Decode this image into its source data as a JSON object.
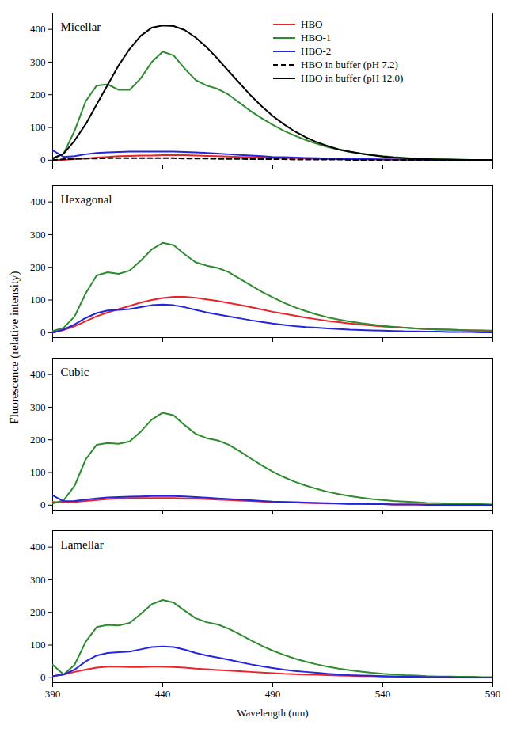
{
  "chart_data": {
    "type": "line",
    "x_label": "Wavelength (nm)",
    "y_label": "Fluorescence (relative intensity)",
    "x": [
      390,
      395,
      400,
      405,
      410,
      415,
      420,
      425,
      430,
      435,
      440,
      445,
      450,
      455,
      460,
      465,
      470,
      475,
      480,
      485,
      490,
      495,
      500,
      505,
      510,
      515,
      520,
      525,
      530,
      535,
      540,
      545,
      550,
      555,
      560,
      565,
      570,
      575,
      580,
      585,
      590
    ],
    "xlim": [
      390,
      590
    ],
    "xticks": [
      390,
      440,
      490,
      540,
      590
    ],
    "ylim": [
      -15,
      450
    ],
    "yticks": [
      0,
      100,
      200,
      300,
      400
    ],
    "legend": "top-right",
    "panels": [
      {
        "title": "Micellar",
        "tick_labels": "y",
        "series": [
          {
            "name": "HBO",
            "color": "#e8242a",
            "values": [
              0,
              1,
              3,
              5,
              8,
              10,
              12,
              13,
              14,
              14,
              15,
              15,
              15,
              14,
              13,
              12,
              11,
              10,
              9,
              8,
              7,
              6,
              6,
              5,
              4,
              4,
              3,
              3,
              2,
              2,
              2,
              2,
              1,
              1,
              1,
              1,
              1,
              1,
              1,
              0,
              0
            ]
          },
          {
            "name": "HBO-1",
            "color": "#2e8b2e",
            "values": [
              5,
              20,
              90,
              180,
              228,
              232,
              215,
              215,
              250,
              300,
              332,
              320,
              280,
              245,
              228,
              218,
              200,
              175,
              150,
              128,
              108,
              90,
              75,
              62,
              50,
              40,
              32,
              25,
              20,
              16,
              12,
              9,
              7,
              5,
              4,
              3,
              2,
              2,
              1,
              1,
              1
            ]
          },
          {
            "name": "HBO-2",
            "color": "#2424e0",
            "values": [
              30,
              10,
              12,
              18,
              22,
              24,
              25,
              26,
              26,
              26,
              26,
              26,
              25,
              24,
              22,
              20,
              18,
              16,
              14,
              12,
              10,
              9,
              8,
              7,
              6,
              5,
              4,
              4,
              3,
              3,
              2,
              2,
              2,
              1,
              1,
              1,
              1,
              0,
              0,
              0,
              0
            ]
          },
          {
            "name": "HBO in buffer (pH 7.2)",
            "color": "#000000",
            "line_style": "dashed",
            "values": [
              0,
              3,
              4,
              5,
              5,
              6,
              6,
              6,
              6,
              6,
              6,
              6,
              5,
              5,
              5,
              4,
              4,
              4,
              3,
              3,
              3,
              3,
              2,
              2,
              2,
              2,
              2,
              1,
              1,
              1,
              1,
              1,
              1,
              1,
              1,
              1,
              0,
              0,
              0,
              0,
              0
            ]
          },
          {
            "name": "HBO in buffer (pH 12.0)",
            "color": "#000000",
            "line_style": "solid",
            "values": [
              5,
              20,
              60,
              110,
              170,
              230,
              290,
              340,
              380,
              405,
              412,
              410,
              398,
              375,
              345,
              310,
              272,
              235,
              198,
              165,
              135,
              110,
              88,
              70,
              55,
              43,
              33,
              26,
              20,
              15,
              11,
              8,
              6,
              4,
              3,
              2,
              2,
              1,
              1,
              1,
              0
            ]
          }
        ]
      },
      {
        "title": "Hexagonal",
        "tick_labels": "y",
        "series": [
          {
            "name": "HBO",
            "color": "#e8242a",
            "values": [
              0,
              8,
              20,
              35,
              50,
              62,
              72,
              82,
              92,
              100,
              106,
              110,
              110,
              107,
              102,
              97,
              91,
              85,
              78,
              71,
              64,
              58,
              52,
              46,
              41,
              36,
              32,
              28,
              25,
              22,
              19,
              17,
              15,
              13,
              11,
              10,
              9,
              8,
              7,
              6,
              5
            ]
          },
          {
            "name": "HBO-1",
            "color": "#2e8b2e",
            "values": [
              5,
              15,
              50,
              120,
              175,
              185,
              180,
              190,
              220,
              255,
              275,
              268,
              240,
              215,
              205,
              198,
              185,
              165,
              145,
              125,
              108,
              92,
              78,
              66,
              56,
              47,
              40,
              34,
              29,
              25,
              21,
              18,
              15,
              13,
              11,
              10,
              9,
              8,
              7,
              7,
              6
            ]
          },
          {
            "name": "HBO-2",
            "color": "#2424e0",
            "values": [
              0,
              10,
              25,
              45,
              60,
              68,
              70,
              72,
              78,
              84,
              86,
              84,
              78,
              70,
              62,
              56,
              50,
              44,
              38,
              33,
              28,
              24,
              20,
              17,
              15,
              13,
              11,
              9,
              8,
              7,
              6,
              5,
              4,
              4,
              3,
              3,
              2,
              2,
              2,
              1,
              1
            ]
          }
        ]
      },
      {
        "title": "Cubic",
        "tick_labels": "y",
        "series": [
          {
            "name": "HBO",
            "color": "#e8242a",
            "values": [
              10,
              8,
              10,
              13,
              16,
              19,
              21,
              22,
              22,
              22,
              22,
              22,
              21,
              20,
              19,
              17,
              16,
              14,
              13,
              11,
              10,
              9,
              8,
              7,
              6,
              5,
              5,
              4,
              4,
              3,
              3,
              2,
              2,
              2,
              2,
              1,
              1,
              1,
              1,
              1,
              1
            ]
          },
          {
            "name": "HBO-1",
            "color": "#2e8b2e",
            "values": [
              5,
              15,
              60,
              140,
              185,
              190,
              188,
              195,
              225,
              262,
              283,
              275,
              245,
              218,
              205,
              198,
              185,
              165,
              143,
              122,
              103,
              86,
              72,
              60,
              50,
              41,
              34,
              28,
              23,
              19,
              16,
              13,
              11,
              9,
              7,
              6,
              5,
              4,
              3,
              3,
              2
            ]
          },
          {
            "name": "HBO-2",
            "color": "#2424e0",
            "values": [
              30,
              12,
              13,
              17,
              21,
              24,
              25,
              26,
              27,
              28,
              28,
              28,
              27,
              25,
              23,
              21,
              19,
              17,
              15,
              13,
              11,
              10,
              9,
              8,
              7,
              6,
              5,
              4,
              4,
              3,
              3,
              2,
              2,
              2,
              1,
              1,
              1,
              1,
              1,
              1,
              1
            ]
          }
        ]
      },
      {
        "title": "Lamellar",
        "series": [
          {
            "name": "HBO",
            "color": "#e8242a",
            "values": [
              5,
              10,
              18,
              25,
              31,
              34,
              34,
              33,
              33,
              34,
              34,
              33,
              31,
              28,
              26,
              24,
              22,
              20,
              18,
              16,
              14,
              12,
              11,
              10,
              9,
              8,
              7,
              6,
              5,
              5,
              4,
              4,
              3,
              3,
              3,
              2,
              2,
              2,
              2,
              1,
              1
            ]
          },
          {
            "name": "HBO-1",
            "color": "#2e8b2e",
            "values": [
              40,
              10,
              40,
              110,
              155,
              162,
              160,
              168,
              195,
              225,
              238,
              230,
              205,
              182,
              170,
              163,
              150,
              133,
              115,
              98,
              83,
              70,
              59,
              49,
              41,
              34,
              28,
              23,
              19,
              15,
              12,
              10,
              8,
              7,
              5,
              4,
              4,
              3,
              3,
              2,
              2
            ]
          },
          {
            "name": "HBO-2",
            "color": "#2424e0",
            "values": [
              5,
              10,
              25,
              50,
              68,
              76,
              78,
              80,
              87,
              94,
              96,
              94,
              86,
              76,
              68,
              62,
              55,
              48,
              41,
              35,
              30,
              25,
              21,
              18,
              15,
              12,
              10,
              8,
              7,
              6,
              5,
              4,
              3,
              3,
              2,
              2,
              2,
              1,
              1,
              1,
              1
            ]
          }
        ]
      }
    ]
  }
}
